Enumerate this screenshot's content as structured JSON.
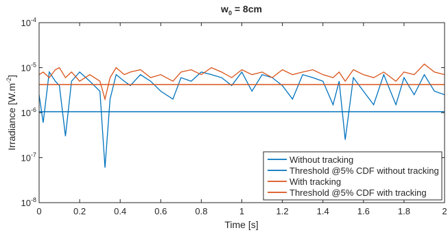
{
  "chart_data": {
    "type": "line",
    "title": {
      "base": "w",
      "sub": "0",
      "rest": " = 8cm"
    },
    "xlabel": "Time [s]",
    "ylabel": {
      "base": "Irradiance [W.m",
      "sup": "-2",
      "rest": "]"
    },
    "yscale": "log",
    "xlim": [
      0,
      2
    ],
    "ylim": [
      1e-08,
      0.0001
    ],
    "xticks": [
      0,
      0.2,
      0.4,
      0.6,
      0.8,
      1,
      1.2,
      1.4,
      1.6,
      1.8,
      2
    ],
    "yticks": [
      {
        "value": 1e-08,
        "label": "10",
        "exponent": "-8"
      },
      {
        "value": 1e-07,
        "label": "10",
        "exponent": "-7"
      },
      {
        "value": 1e-06,
        "label": "10",
        "exponent": "-6"
      },
      {
        "value": 1e-05,
        "label": "10",
        "exponent": "-5"
      },
      {
        "value": 0.0001,
        "label": "10",
        "exponent": "-4"
      }
    ],
    "grid": false,
    "legend": "southeast",
    "x": [
      0,
      0.02,
      0.05,
      0.08,
      0.1,
      0.13,
      0.16,
      0.2,
      0.25,
      0.3,
      0.325,
      0.35,
      0.38,
      0.42,
      0.45,
      0.5,
      0.55,
      0.6,
      0.66,
      0.7,
      0.75,
      0.8,
      0.85,
      0.9,
      0.95,
      1.0,
      1.05,
      1.1,
      1.15,
      1.2,
      1.25,
      1.3,
      1.35,
      1.4,
      1.45,
      1.48,
      1.51,
      1.55,
      1.6,
      1.65,
      1.7,
      1.76,
      1.8,
      1.85,
      1.9,
      1.95,
      2.0
    ],
    "series": [
      {
        "name": "Without tracking",
        "color": "#0072BD",
        "values": [
          2.5e-06,
          6e-07,
          8e-06,
          5e-06,
          4e-06,
          3e-07,
          5e-06,
          8e-06,
          5e-06,
          3e-06,
          6e-08,
          2e-06,
          7e-06,
          5e-06,
          4e-06,
          7e-06,
          5e-06,
          3e-06,
          2e-06,
          6e-06,
          5e-06,
          8e-06,
          7e-06,
          6e-06,
          4e-06,
          8e-06,
          3e-06,
          7e-06,
          6e-06,
          4e-06,
          2e-06,
          7e-06,
          6e-06,
          5e-06,
          1.5e-06,
          5e-06,
          2.5e-07,
          6e-06,
          3e-06,
          1.5e-06,
          7e-06,
          1.5e-06,
          6e-06,
          2.5e-06,
          7e-06,
          3e-06,
          2.5e-06
        ]
      },
      {
        "name": "Threshold @5% CDF without tracking",
        "color": "#0072BD",
        "value": 1.05e-06
      },
      {
        "name": "With tracking",
        "color": "#D95319",
        "values": [
          7e-06,
          8e-06,
          6e-06,
          9e-06,
          1e-05,
          6e-06,
          8e-06,
          5e-06,
          7e-06,
          5e-06,
          2e-06,
          6e-06,
          1e-05,
          7e-06,
          8e-06,
          9e-06,
          6e-06,
          7e-06,
          5e-06,
          8e-06,
          9e-06,
          7e-06,
          1e-05,
          8e-06,
          6e-06,
          9e-06,
          7e-06,
          8e-06,
          6e-06,
          9e-06,
          7e-06,
          8e-06,
          9e-06,
          7e-06,
          6e-06,
          8e-06,
          5e-06,
          9e-06,
          7e-06,
          6e-06,
          8e-06,
          5e-06,
          8e-06,
          7e-06,
          1.2e-05,
          8e-06,
          7e-06
        ]
      },
      {
        "name": "Threshold @5% CDF with tracking",
        "color": "#D95319",
        "value": 4.2e-06
      }
    ]
  }
}
